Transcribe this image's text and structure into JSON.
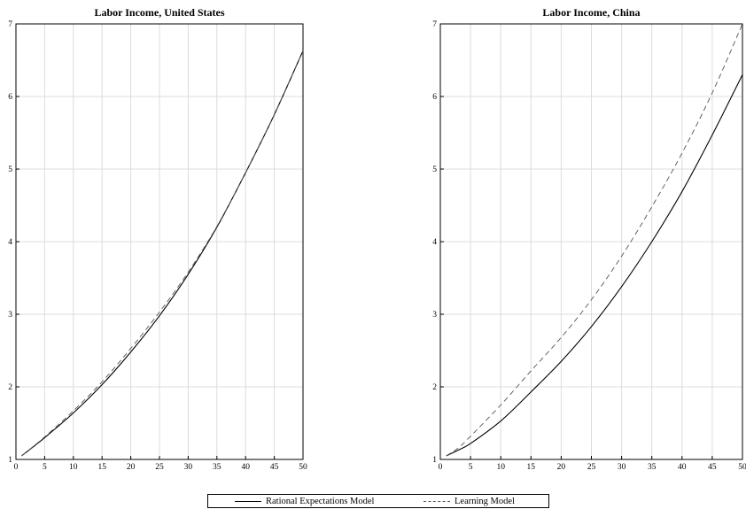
{
  "chart_data": [
    {
      "type": "line",
      "title": "Labor Income, United States",
      "xlabel": "",
      "ylabel": "",
      "xlim": [
        0,
        50
      ],
      "ylim": [
        1,
        7
      ],
      "xticks": [
        0,
        5,
        10,
        15,
        20,
        25,
        30,
        35,
        40,
        45,
        50
      ],
      "yticks": [
        1,
        2,
        3,
        4,
        5,
        6,
        7
      ],
      "grid": true,
      "series": [
        {
          "name": "Rational Expectations Model",
          "style": "solid",
          "color": "#000000",
          "x": [
            1,
            5,
            10,
            15,
            20,
            25,
            30,
            35,
            40,
            45,
            50
          ],
          "y": [
            1.05,
            1.3,
            1.64,
            2.03,
            2.48,
            2.98,
            3.55,
            4.2,
            4.95,
            5.75,
            6.63
          ]
        },
        {
          "name": "Learning Model",
          "style": "dashed",
          "color": "#555555",
          "x": [
            1,
            5,
            10,
            15,
            20,
            25,
            30,
            35,
            40,
            45,
            50
          ],
          "y": [
            1.05,
            1.31,
            1.67,
            2.07,
            2.53,
            3.03,
            3.58,
            4.21,
            4.95,
            5.75,
            6.63
          ]
        }
      ]
    },
    {
      "type": "line",
      "title": "Labor Income, China",
      "xlabel": "",
      "ylabel": "",
      "xlim": [
        0,
        50
      ],
      "ylim": [
        1,
        7
      ],
      "xticks": [
        0,
        5,
        10,
        15,
        20,
        25,
        30,
        35,
        40,
        45,
        50
      ],
      "yticks": [
        1,
        2,
        3,
        4,
        5,
        6,
        7
      ],
      "grid": true,
      "series": [
        {
          "name": "Rational Expectations Model",
          "style": "solid",
          "color": "#000000",
          "x": [
            1,
            3,
            5,
            10,
            15,
            20,
            25,
            30,
            35,
            40,
            45,
            50
          ],
          "y": [
            1.05,
            1.13,
            1.22,
            1.53,
            1.93,
            2.35,
            2.83,
            3.38,
            4.0,
            4.69,
            5.47,
            6.3
          ]
        },
        {
          "name": "Learning Model",
          "style": "dashed",
          "color": "#555555",
          "x": [
            1,
            3,
            5,
            10,
            15,
            20,
            25,
            30,
            35,
            40,
            45,
            50
          ],
          "y": [
            1.05,
            1.16,
            1.32,
            1.75,
            2.22,
            2.68,
            3.2,
            3.8,
            4.48,
            5.22,
            6.05,
            7.0
          ]
        }
      ]
    }
  ],
  "legend": {
    "placement": "bottom-center",
    "entries": [
      {
        "label": "Rational Expectations Model",
        "style": "solid"
      },
      {
        "label": "Learning Model",
        "style": "dashed"
      }
    ]
  }
}
